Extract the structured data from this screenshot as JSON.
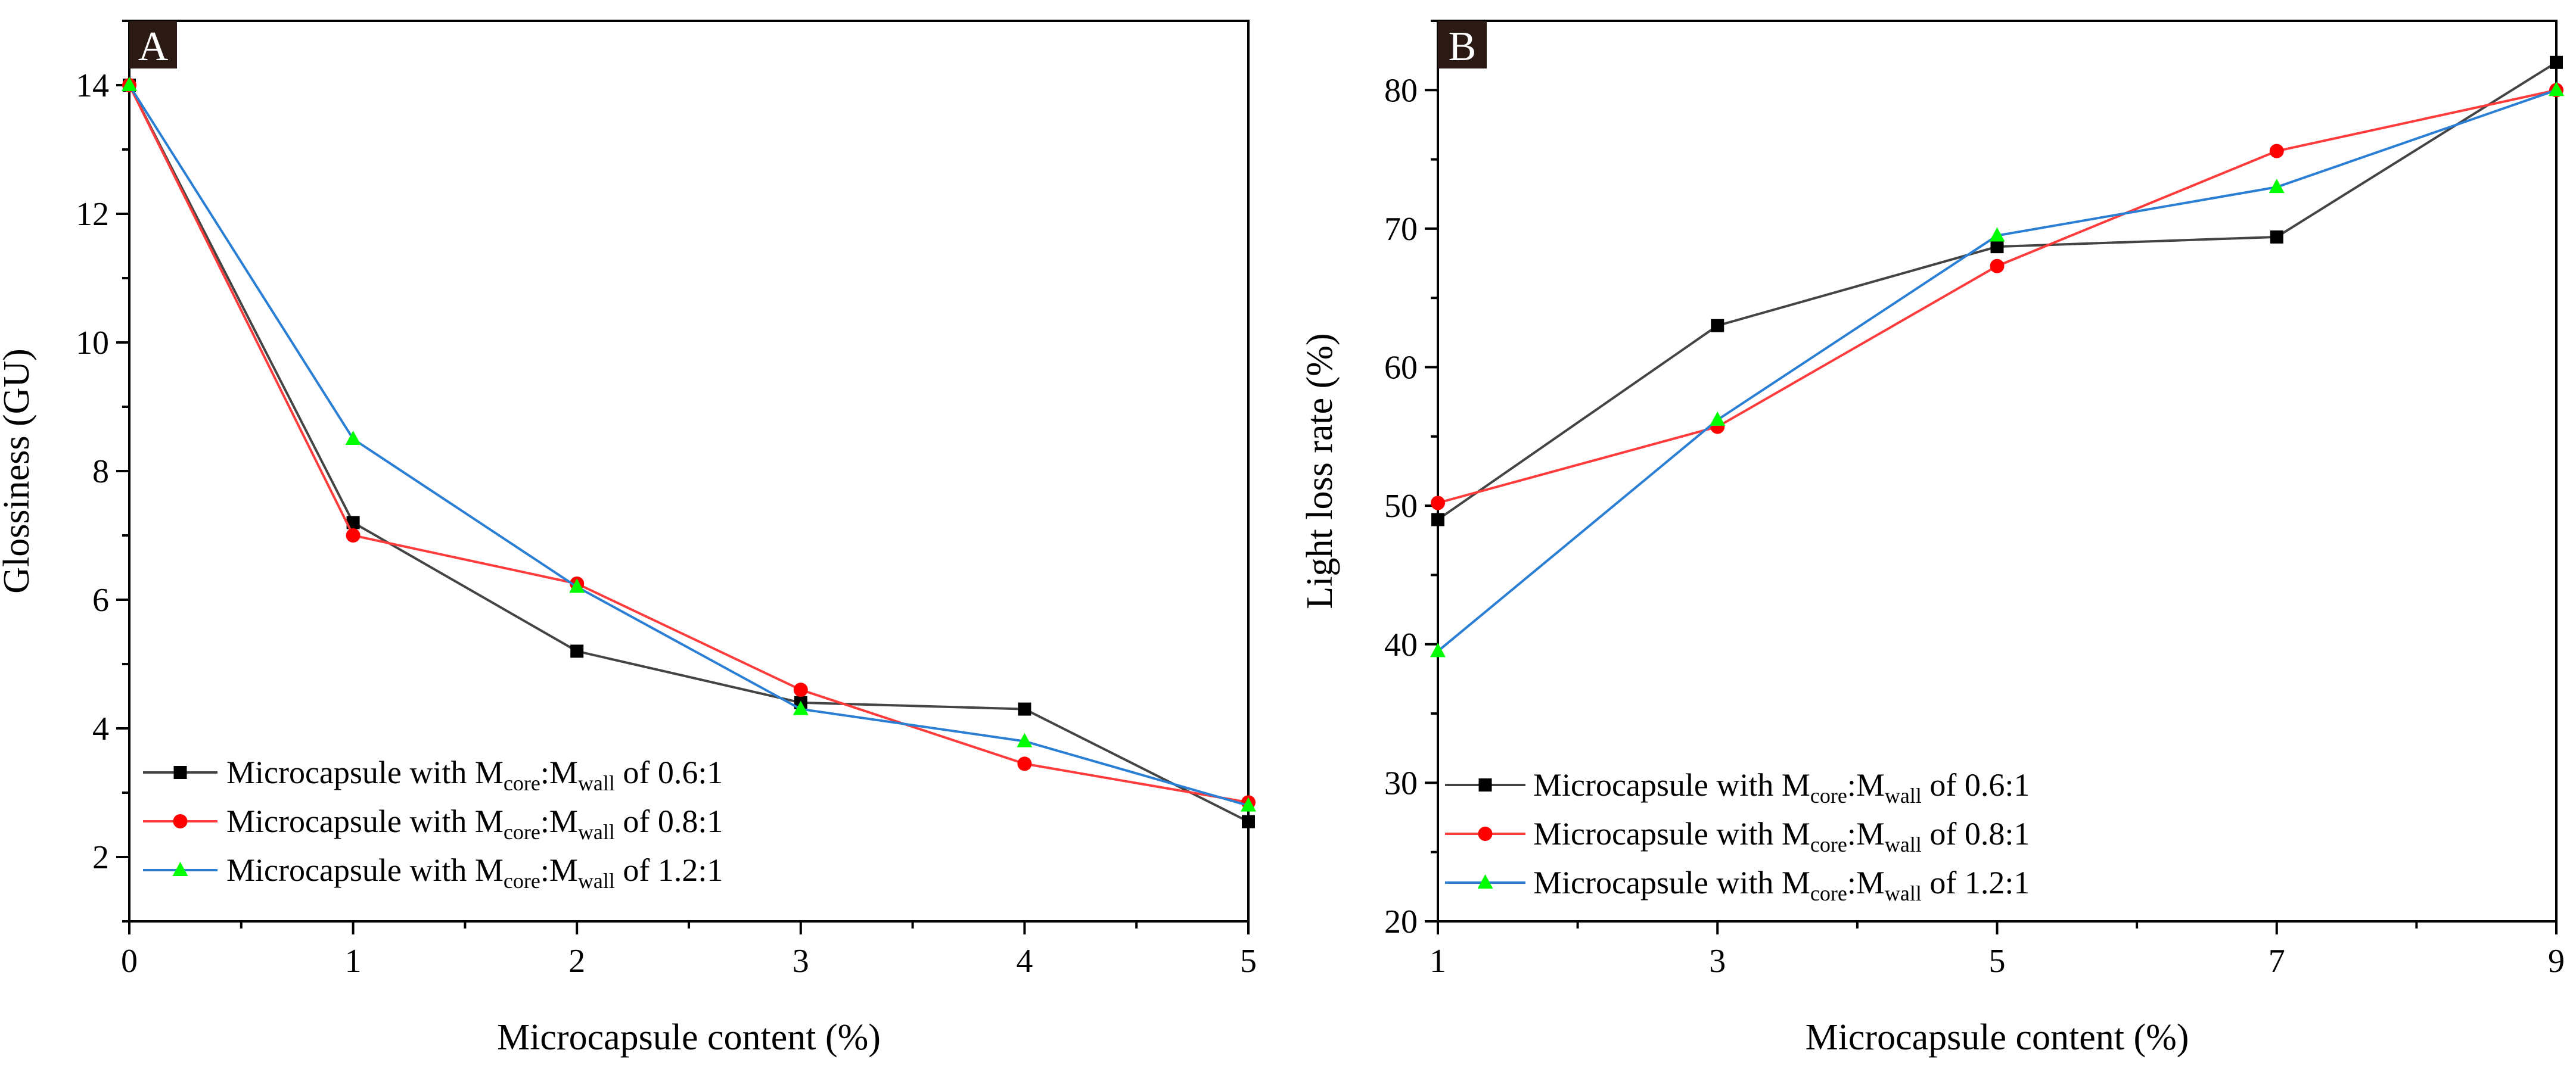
{
  "chart_data": [
    {
      "panel": "A",
      "type": "line",
      "xlabel": "Microcapsule content (%)",
      "ylabel": "Glossiness (GU)",
      "x": [
        0,
        1,
        2,
        3,
        4,
        5
      ],
      "xticks": [
        0,
        1,
        2,
        3,
        4,
        5
      ],
      "xlim": [
        0,
        5
      ],
      "ylim": [
        1,
        15
      ],
      "yticks": [
        2,
        4,
        6,
        8,
        10,
        12,
        14
      ],
      "legend_position": "bottom-left",
      "series": [
        {
          "name": "Microcapsule with Mcore:Mwall of 0.6:1",
          "legend_prefix": "Microcapsule with M",
          "legend_sub1": "core",
          "legend_mid": ":M",
          "legend_sub2": "wall",
          "legend_suffix": " of 0.6:1",
          "color": "#000000",
          "line_color": "#444444",
          "marker": "square",
          "values": [
            14.0,
            7.2,
            5.2,
            4.4,
            4.3,
            2.55
          ]
        },
        {
          "name": "Microcapsule with Mcore:Mwall of 0.8:1",
          "legend_prefix": "Microcapsule with M",
          "legend_sub1": "core",
          "legend_mid": ":M",
          "legend_sub2": "wall",
          "legend_suffix": " of 0.8:1",
          "color": "#ff0000",
          "line_color": "#ff3b3b",
          "marker": "circle",
          "values": [
            14.0,
            7.0,
            6.25,
            4.6,
            3.45,
            2.85
          ]
        },
        {
          "name": "Microcapsule with Mcore:Mwall of 1.2:1",
          "legend_prefix": "Microcapsule with M",
          "legend_sub1": "core",
          "legend_mid": ":M",
          "legend_sub2": "wall",
          "legend_suffix": " of 1.2:1",
          "color": "#00ff00",
          "line_color": "#2a7fd4",
          "marker": "triangle",
          "values": [
            14.0,
            8.5,
            6.2,
            4.3,
            3.8,
            2.8
          ]
        }
      ]
    },
    {
      "panel": "B",
      "type": "line",
      "xlabel": "Microcapsule content (%)",
      "ylabel": "Light loss rate (%)",
      "x": [
        1,
        3,
        5,
        7,
        9
      ],
      "xticks": [
        1,
        3,
        5,
        7,
        9
      ],
      "xlim": [
        1,
        9
      ],
      "ylim": [
        20,
        85
      ],
      "yticks": [
        20,
        30,
        40,
        50,
        60,
        70,
        80
      ],
      "legend_position": "bottom-left",
      "series": [
        {
          "name": "Microcapsule with Mcore:Mwall of 0.6:1",
          "legend_prefix": "Microcapsule with M",
          "legend_sub1": "core",
          "legend_mid": ":M",
          "legend_sub2": "wall",
          "legend_suffix": " of 0.6:1",
          "color": "#000000",
          "line_color": "#444444",
          "marker": "square",
          "values": [
            49.0,
            63.0,
            68.7,
            69.4,
            82.0
          ]
        },
        {
          "name": "Microcapsule with Mcore:Mwall of 0.8:1",
          "legend_prefix": "Microcapsule with M",
          "legend_sub1": "core",
          "legend_mid": ":M",
          "legend_sub2": "wall",
          "legend_suffix": " of 0.8:1",
          "color": "#ff0000",
          "line_color": "#ff3b3b",
          "marker": "circle",
          "values": [
            50.2,
            55.7,
            67.3,
            75.6,
            80.0
          ]
        },
        {
          "name": "Microcapsule with Mcore:Mwall of 1.2:1",
          "legend_prefix": "Microcapsule with M",
          "legend_sub1": "core",
          "legend_mid": ":M",
          "legend_sub2": "wall",
          "legend_suffix": " of 1.2:1",
          "color": "#00ff00",
          "line_color": "#2a7fd4",
          "marker": "triangle",
          "values": [
            39.5,
            56.2,
            69.5,
            73.0,
            80.0
          ]
        }
      ]
    }
  ]
}
